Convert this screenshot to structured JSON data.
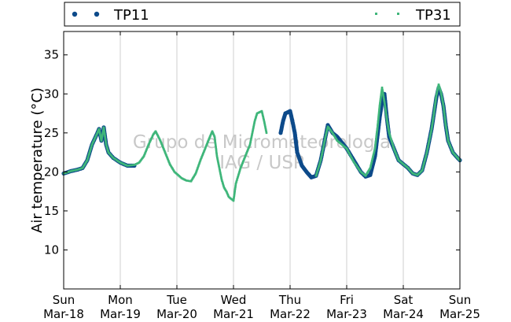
{
  "chart_data": {
    "type": "scatter",
    "ylabel": "Air temperature (°C)",
    "watermark": [
      "Grupo de Micrometeorologia",
      "IAG / USP"
    ],
    "ylim": [
      5,
      38
    ],
    "yticks": [
      10,
      15,
      20,
      25,
      30,
      35
    ],
    "xlim": [
      "2024-03-18T00:00",
      "2024-03-25T00:00"
    ],
    "xticks": [
      {
        "day": "Sun",
        "date": "Mar-18"
      },
      {
        "day": "Mon",
        "date": "Mar-19"
      },
      {
        "day": "Tue",
        "date": "Mar-20"
      },
      {
        "day": "Wed",
        "date": "Mar-21"
      },
      {
        "day": "Thu",
        "date": "Mar-22"
      },
      {
        "day": "Fri",
        "date": "Mar-23"
      },
      {
        "day": "Sat",
        "date": "Mar-24"
      },
      {
        "day": "Sun",
        "date": "Mar-25"
      }
    ],
    "grid": "vertical",
    "legend_position": "top",
    "series": [
      {
        "name": "TP11",
        "color": "#0d4a8a",
        "marker": "circle",
        "segments": [
          [
            [
              "2024-03-18T00:00",
              19.8
            ],
            [
              "2024-03-18T03:00",
              20.1
            ],
            [
              "2024-03-18T06:00",
              20.3
            ],
            [
              "2024-03-18T08:00",
              20.5
            ],
            [
              "2024-03-18T10:00",
              21.5
            ],
            [
              "2024-03-18T12:00",
              23.5
            ],
            [
              "2024-03-18T14:00",
              24.8
            ],
            [
              "2024-03-18T15:00",
              25.5
            ],
            [
              "2024-03-18T16:00",
              24.0
            ],
            [
              "2024-03-18T17:00",
              25.7
            ],
            [
              "2024-03-18T18:00",
              23.5
            ],
            [
              "2024-03-18T19:00",
              22.5
            ],
            [
              "2024-03-18T21:00",
              21.8
            ],
            [
              "2024-03-19T00:00",
              21.2
            ],
            [
              "2024-03-19T03:00",
              20.8
            ],
            [
              "2024-03-19T06:00",
              20.8
            ]
          ],
          [
            [
              "2024-03-21T20:00",
              25.0
            ],
            [
              "2024-03-21T21:00",
              26.5
            ],
            [
              "2024-03-21T22:00",
              27.5
            ],
            [
              "2024-03-22T00:00",
              27.8
            ],
            [
              "2024-03-22T01:00",
              26.5
            ],
            [
              "2024-03-22T02:00",
              25.0
            ],
            [
              "2024-03-22T03:00",
              22.5
            ],
            [
              "2024-03-22T05:00",
              20.8
            ],
            [
              "2024-03-22T07:00",
              20.0
            ],
            [
              "2024-03-22T09:00",
              19.3
            ],
            [
              "2024-03-22T11:00",
              19.5
            ],
            [
              "2024-03-22T13:00",
              21.5
            ],
            [
              "2024-03-22T15:00",
              24.5
            ],
            [
              "2024-03-22T16:00",
              26.0
            ],
            [
              "2024-03-22T18:00",
              25.0
            ],
            [
              "2024-03-22T20:00",
              24.5
            ],
            [
              "2024-03-23T00:00",
              23.0
            ],
            [
              "2024-03-23T03:00",
              21.5
            ],
            [
              "2024-03-23T06:00",
              20.0
            ],
            [
              "2024-03-23T08:00",
              19.4
            ],
            [
              "2024-03-23T10:00",
              19.6
            ],
            [
              "2024-03-23T12:00",
              22.0
            ],
            [
              "2024-03-23T13:00",
              24.5
            ],
            [
              "2024-03-23T14:00",
              27.0
            ],
            [
              "2024-03-23T15:00",
              29.0
            ],
            [
              "2024-03-23T16:00",
              30.0
            ],
            [
              "2024-03-23T17:00",
              27.0
            ],
            [
              "2024-03-23T18:00",
              24.5
            ],
            [
              "2024-03-23T20:00",
              23.0
            ],
            [
              "2024-03-23T22:00",
              21.5
            ],
            [
              "2024-03-24T00:00",
              21.0
            ],
            [
              "2024-03-24T02:00",
              20.5
            ],
            [
              "2024-03-24T04:00",
              19.8
            ],
            [
              "2024-03-24T06:00",
              19.6
            ],
            [
              "2024-03-24T08:00",
              20.2
            ],
            [
              "2024-03-24T10:00",
              22.5
            ],
            [
              "2024-03-24T12:00",
              25.5
            ],
            [
              "2024-03-24T13:00",
              27.5
            ],
            [
              "2024-03-24T14:00",
              29.5
            ],
            [
              "2024-03-24T15:00",
              30.8
            ],
            [
              "2024-03-24T16:00",
              30.0
            ],
            [
              "2024-03-24T17:00",
              28.5
            ],
            [
              "2024-03-24T18:00",
              26.0
            ],
            [
              "2024-03-24T19:00",
              24.0
            ],
            [
              "2024-03-24T21:00",
              22.5
            ],
            [
              "2024-03-24T23:00",
              21.8
            ],
            [
              "2024-03-25T00:00",
              21.5
            ]
          ]
        ]
      },
      {
        "name": "TP31",
        "color": "#3fb67a",
        "marker": "square",
        "segments": [
          [
            [
              "2024-03-18T00:00",
              19.8
            ],
            [
              "2024-03-18T03:00",
              20.1
            ],
            [
              "2024-03-18T06:00",
              20.3
            ],
            [
              "2024-03-18T08:00",
              20.5
            ],
            [
              "2024-03-18T10:00",
              21.5
            ],
            [
              "2024-03-18T12:00",
              23.5
            ],
            [
              "2024-03-18T14:00",
              24.8
            ],
            [
              "2024-03-18T15:00",
              25.5
            ],
            [
              "2024-03-18T16:00",
              24.0
            ],
            [
              "2024-03-18T17:00",
              25.7
            ],
            [
              "2024-03-18T18:00",
              23.5
            ],
            [
              "2024-03-18T19:00",
              22.5
            ],
            [
              "2024-03-18T21:00",
              21.8
            ],
            [
              "2024-03-19T00:00",
              21.2
            ],
            [
              "2024-03-19T03:00",
              20.8
            ],
            [
              "2024-03-19T06:00",
              20.9
            ],
            [
              "2024-03-19T08:00",
              21.2
            ],
            [
              "2024-03-19T10:00",
              22.0
            ],
            [
              "2024-03-19T12:00",
              23.5
            ],
            [
              "2024-03-19T14:00",
              24.8
            ],
            [
              "2024-03-19T15:00",
              25.2
            ],
            [
              "2024-03-19T17:00",
              24.0
            ],
            [
              "2024-03-19T19:00",
              22.5
            ],
            [
              "2024-03-19T21:00",
              21.0
            ],
            [
              "2024-03-19T23:00",
              20.0
            ],
            [
              "2024-03-20T02:00",
              19.2
            ],
            [
              "2024-03-20T04:00",
              18.9
            ],
            [
              "2024-03-20T06:00",
              18.8
            ],
            [
              "2024-03-20T08:00",
              19.8
            ],
            [
              "2024-03-20T10:00",
              21.5
            ],
            [
              "2024-03-20T12:00",
              23.0
            ],
            [
              "2024-03-20T14:00",
              24.5
            ],
            [
              "2024-03-20T15:00",
              25.2
            ],
            [
              "2024-03-20T16:00",
              24.5
            ],
            [
              "2024-03-20T17:00",
              22.0
            ],
            [
              "2024-03-20T18:00",
              20.5
            ],
            [
              "2024-03-20T19:00",
              19.0
            ],
            [
              "2024-03-20T20:00",
              18.0
            ],
            [
              "2024-03-20T21:00",
              17.5
            ],
            [
              "2024-03-20T22:00",
              16.8
            ],
            [
              "2024-03-21T00:00",
              16.3
            ],
            [
              "2024-03-21T01:00",
              18.5
            ],
            [
              "2024-03-21T03:00",
              20.5
            ],
            [
              "2024-03-21T05:00",
              22.0
            ],
            [
              "2024-03-21T07:00",
              23.5
            ],
            [
              "2024-03-21T08:00",
              25.0
            ],
            [
              "2024-03-21T09:00",
              26.5
            ],
            [
              "2024-03-21T10:00",
              27.5
            ],
            [
              "2024-03-21T12:00",
              27.8
            ],
            [
              "2024-03-21T13:00",
              26.5
            ],
            [
              "2024-03-21T14:00",
              25.0
            ]
          ],
          [
            [
              "2024-03-22T11:00",
              19.5
            ],
            [
              "2024-03-22T13:00",
              21.5
            ],
            [
              "2024-03-22T15:00",
              24.5
            ],
            [
              "2024-03-22T16:00",
              25.8
            ],
            [
              "2024-03-22T18:00",
              25.0
            ],
            [
              "2024-03-22T20:00",
              24.0
            ],
            [
              "2024-03-23T00:00",
              23.0
            ],
            [
              "2024-03-23T03:00",
              21.3
            ],
            [
              "2024-03-23T06:00",
              20.0
            ],
            [
              "2024-03-23T08:00",
              19.5
            ],
            [
              "2024-03-23T10:00",
              20.5
            ],
            [
              "2024-03-23T12:00",
              23.0
            ],
            [
              "2024-03-23T13:00",
              25.5
            ],
            [
              "2024-03-23T14:00",
              28.5
            ],
            [
              "2024-03-23T15:00",
              30.8
            ],
            [
              "2024-03-23T16:00",
              29.0
            ],
            [
              "2024-03-23T17:00",
              26.8
            ],
            [
              "2024-03-23T18:00",
              25.0
            ],
            [
              "2024-03-23T20:00",
              23.0
            ],
            [
              "2024-03-23T22:00",
              21.5
            ],
            [
              "2024-03-24T00:00",
              21.0
            ],
            [
              "2024-03-24T02:00",
              20.5
            ],
            [
              "2024-03-24T04:00",
              19.8
            ],
            [
              "2024-03-24T06:00",
              19.6
            ],
            [
              "2024-03-24T08:00",
              20.2
            ],
            [
              "2024-03-24T10:00",
              22.5
            ],
            [
              "2024-03-24T12:00",
              25.5
            ],
            [
              "2024-03-24T13:00",
              27.5
            ],
            [
              "2024-03-24T14:00",
              29.8
            ],
            [
              "2024-03-24T15:00",
              31.2
            ],
            [
              "2024-03-24T16:00",
              30.2
            ],
            [
              "2024-03-24T17:00",
              28.5
            ],
            [
              "2024-03-24T18:00",
              26.0
            ],
            [
              "2024-03-24T19:00",
              24.0
            ],
            [
              "2024-03-24T21:00",
              22.5
            ],
            [
              "2024-03-24T23:00",
              21.8
            ],
            [
              "2024-03-25T00:00",
              21.5
            ]
          ]
        ]
      }
    ]
  }
}
